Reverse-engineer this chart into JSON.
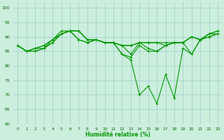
{
  "xlabel": "Humidité relative (%)",
  "x_ticks": [
    0,
    1,
    2,
    3,
    4,
    5,
    6,
    7,
    8,
    9,
    10,
    11,
    12,
    13,
    14,
    15,
    16,
    17,
    18,
    19,
    20,
    21,
    22,
    23
  ],
  "ylim": [
    60,
    102
  ],
  "yticks": [
    60,
    65,
    70,
    75,
    80,
    85,
    90,
    95,
    100
  ],
  "background_color": "#cceedd",
  "grid_color": "#99cccc",
  "line_color": "#009900",
  "series": [
    [
      87,
      85,
      86,
      87,
      89,
      91,
      92,
      92,
      89,
      89,
      88,
      88,
      87,
      87,
      88,
      88,
      88,
      88,
      88,
      88,
      90,
      89,
      91,
      92
    ],
    [
      87,
      85,
      86,
      87,
      89,
      91,
      92,
      92,
      89,
      89,
      88,
      88,
      87,
      87,
      88,
      88,
      88,
      87,
      88,
      88,
      90,
      89,
      91,
      92
    ],
    [
      87,
      85,
      86,
      86,
      89,
      92,
      92,
      92,
      89,
      89,
      88,
      88,
      87,
      84,
      88,
      86,
      85,
      87,
      88,
      88,
      90,
      89,
      91,
      91
    ],
    [
      87,
      85,
      85,
      86,
      88,
      91,
      92,
      89,
      88,
      89,
      88,
      88,
      84,
      83,
      87,
      85,
      85,
      87,
      88,
      88,
      84,
      89,
      90,
      91
    ],
    [
      87,
      85,
      85,
      86,
      88,
      91,
      92,
      89,
      88,
      89,
      88,
      88,
      84,
      82,
      70,
      73,
      67,
      77,
      69,
      86,
      84,
      89,
      90,
      91
    ]
  ]
}
